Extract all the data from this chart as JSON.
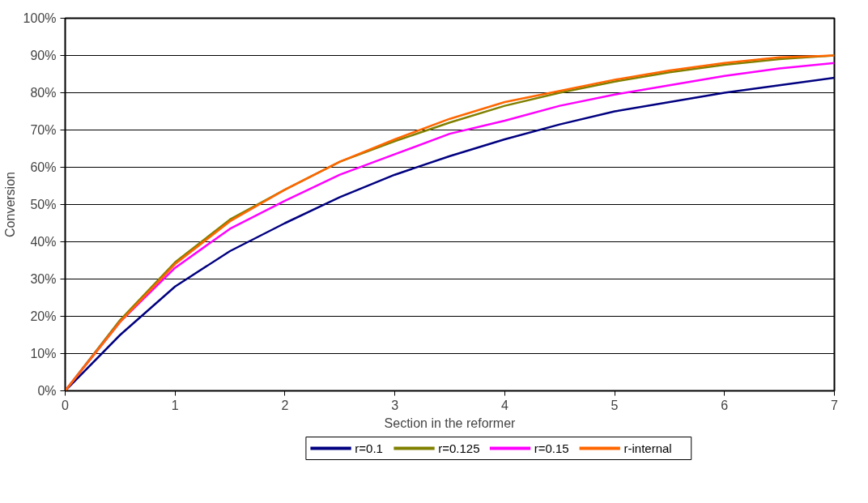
{
  "chart_data": {
    "type": "line",
    "xlabel": "Section in the reformer",
    "ylabel": "Conversion",
    "x": [
      0,
      0.5,
      1,
      1.5,
      2,
      2.5,
      3,
      3.5,
      4,
      4.5,
      5,
      5.5,
      6,
      6.5,
      7
    ],
    "series": [
      {
        "name": "r=0.1",
        "color": "#000080",
        "values": [
          0,
          15,
          28,
          37.5,
          45,
          52,
          58,
          63,
          67.5,
          71.5,
          75,
          77.5,
          80,
          82,
          84
        ]
      },
      {
        "name": "r=0.125",
        "color": "#808000",
        "values": [
          0,
          19,
          34.5,
          46,
          54,
          61.5,
          67,
          72,
          76.5,
          80,
          83,
          85.5,
          87.5,
          89,
          90
        ]
      },
      {
        "name": "r=0.15",
        "color": "#ff00ff",
        "values": [
          0,
          18.5,
          33,
          43.5,
          51,
          58,
          63.5,
          69,
          72.5,
          76.5,
          79.5,
          82,
          84.5,
          86.5,
          88
        ]
      },
      {
        "name": "r-internal",
        "color": "#ff6600",
        "values": [
          0,
          18.5,
          34,
          45.5,
          54,
          61.5,
          67.5,
          73,
          77.5,
          80.5,
          83.5,
          86,
          88,
          89.5,
          90
        ]
      }
    ],
    "xlim": [
      0,
      7
    ],
    "xticks": [
      0,
      1,
      2,
      3,
      4,
      5,
      6,
      7
    ],
    "ylim": [
      0,
      100
    ],
    "yticks": [
      {
        "value": 0,
        "label": "0%"
      },
      {
        "value": 10,
        "label": "10%"
      },
      {
        "value": 20,
        "label": "20%"
      },
      {
        "value": 30,
        "label": "30%"
      },
      {
        "value": 40,
        "label": "40%"
      },
      {
        "value": 50,
        "label": "50%"
      },
      {
        "value": 60,
        "label": "60%"
      },
      {
        "value": 70,
        "label": "70%"
      },
      {
        "value": 80,
        "label": "80%"
      },
      {
        "value": 90,
        "label": "90%"
      },
      {
        "value": 100,
        "label": "100%"
      }
    ],
    "grid": "y",
    "legend": "bottom",
    "line_style": "solid"
  }
}
